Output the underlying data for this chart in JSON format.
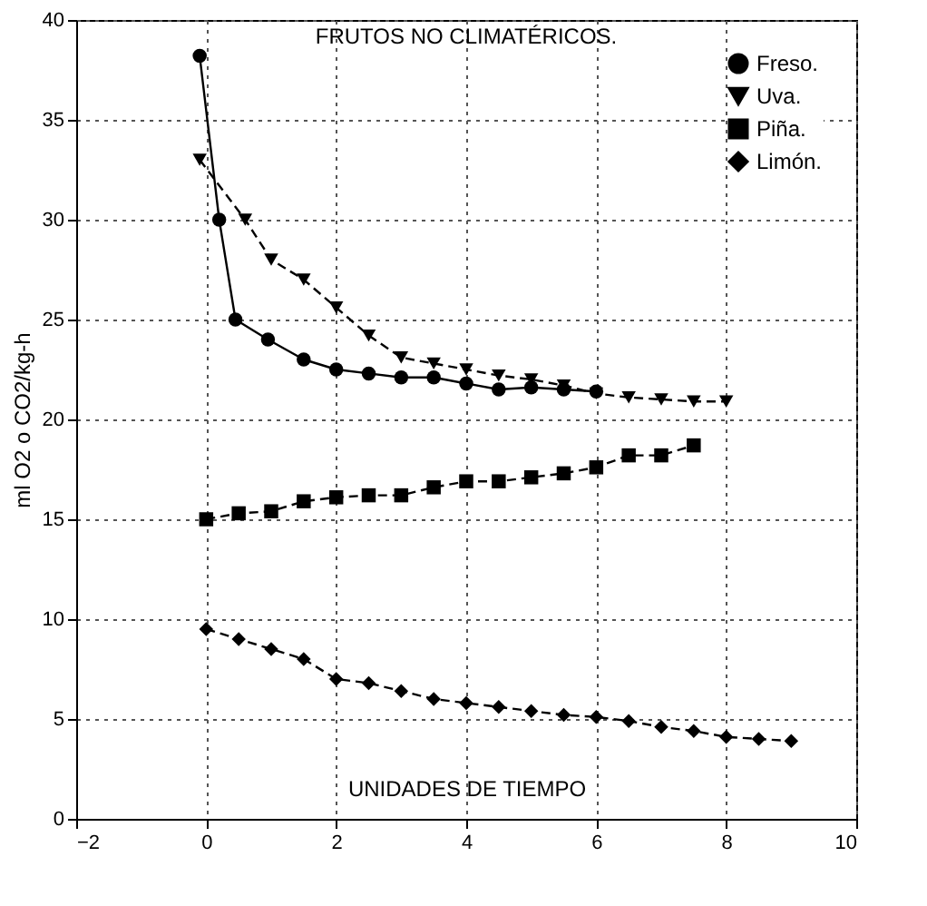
{
  "chart_data": {
    "type": "line",
    "title": "FRUTOS NO CLIMATÉRICOS.",
    "xlabel": "UNIDADES DE TIEMPO",
    "ylabel": "ml O2 o CO2/kg-h",
    "xlim": [
      -2,
      10
    ],
    "xticks": [
      -2,
      0,
      2,
      4,
      6,
      8,
      10
    ],
    "ylim": [
      0,
      40
    ],
    "yticks": [
      0,
      5,
      10,
      15,
      20,
      25,
      30,
      35,
      40
    ],
    "grid": true,
    "legend": "top right",
    "series": [
      {
        "name": "Freso.",
        "color": "#000000",
        "marker": "circle",
        "line_style": "solid",
        "x": [
          -0.1,
          0.2,
          0.45,
          0.95,
          1.5,
          2,
          2.5,
          3,
          3.5,
          4,
          4.5,
          5,
          5.5,
          6
        ],
        "values": [
          38.2,
          30,
          25,
          24,
          23,
          22.5,
          22.3,
          22.1,
          22.1,
          21.8,
          21.5,
          21.6,
          21.5,
          21.4
        ]
      },
      {
        "name": "Uva.",
        "color": "#000000",
        "marker": "triangle-down",
        "line_style": "dashed",
        "x": [
          -0.1,
          0.6,
          1,
          1.5,
          2,
          2.5,
          3,
          3.5,
          4,
          4.5,
          5,
          5.5,
          6,
          6.5,
          7,
          7.5,
          8
        ],
        "values": [
          33,
          30,
          28,
          27,
          25.6,
          24.2,
          23.1,
          22.8,
          22.5,
          22.2,
          22,
          21.7,
          21.3,
          21.1,
          21,
          20.9,
          20.9
        ]
      },
      {
        "name": "Piña.",
        "color": "#000000",
        "marker": "square",
        "line_style": "dashed",
        "x": [
          0,
          0.5,
          1,
          1.5,
          2,
          2.5,
          3,
          3.5,
          4,
          4.5,
          5,
          5.5,
          6,
          6.5,
          7,
          7.5
        ],
        "values": [
          15,
          15.3,
          15.4,
          15.9,
          16.1,
          16.2,
          16.2,
          16.6,
          16.9,
          16.9,
          17.1,
          17.3,
          17.6,
          18.2,
          18.2,
          18.7
        ]
      },
      {
        "name": "Limón.",
        "color": "#000000",
        "marker": "diamond",
        "line_style": "dashed",
        "x": [
          0,
          0.5,
          1,
          1.5,
          2,
          2.5,
          3,
          3.5,
          4,
          4.5,
          5,
          5.5,
          6,
          6.5,
          7,
          7.5,
          8,
          8.5,
          9
        ],
        "values": [
          9.5,
          9,
          8.5,
          8,
          7,
          6.8,
          6.4,
          6,
          5.8,
          5.6,
          5.4,
          5.2,
          5.1,
          4.9,
          4.6,
          4.4,
          4.1,
          4,
          3.9
        ]
      }
    ]
  }
}
